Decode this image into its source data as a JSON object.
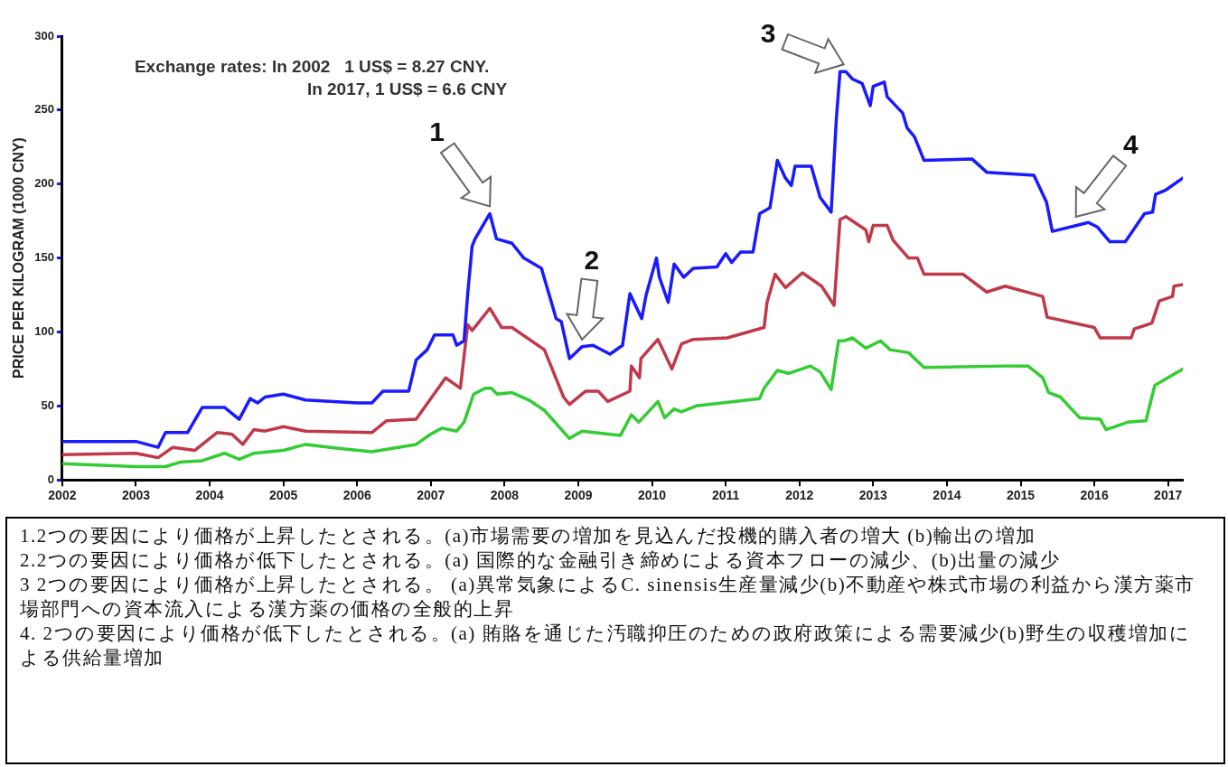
{
  "chart_data": {
    "type": "line",
    "ylabel": "PRICE PER KILOGRAM (1000 CNY)",
    "xlim": [
      2002,
      2017.2
    ],
    "xticks": [
      2002,
      2003,
      2004,
      2005,
      2006,
      2007,
      2008,
      2009,
      2010,
      2011,
      2012,
      2013,
      2014,
      2015,
      2016,
      2017
    ],
    "ylim": [
      0,
      300
    ],
    "yticks": [
      0,
      50,
      100,
      150,
      200,
      250,
      300
    ],
    "grid": false,
    "legend": false,
    "marker": "none",
    "line_style": "solid",
    "series": [
      {
        "color": "#1a1aff",
        "x": [
          2002,
          2003,
          2003.3,
          2003.4,
          2003.7,
          2003.9,
          2004.2,
          2004.4,
          2004.55,
          2004.65,
          2004.75,
          2005,
          2005.3,
          2006,
          2006.2,
          2006.35,
          2006.7,
          2006.8,
          2006.95,
          2007.05,
          2007.3,
          2007.35,
          2007.45,
          2007.5,
          2007.56,
          2007.6,
          2007.8,
          2007.89,
          2008.1,
          2008.26,
          2008.5,
          2008.7,
          2008.77,
          2008.88,
          2009.05,
          2009.2,
          2009.43,
          2009.6,
          2009.7,
          2009.86,
          2009.92,
          2010.06,
          2010.1,
          2010.22,
          2010.3,
          2010.43,
          2010.56,
          2010.88,
          2011,
          2011.08,
          2011.2,
          2011.37,
          2011.46,
          2011.6,
          2011.7,
          2011.81,
          2011.89,
          2011.94,
          2012.16,
          2012.28,
          2012.43,
          2012.5,
          2012.55,
          2012.63,
          2012.72,
          2012.85,
          2012.96,
          2013,
          2013.15,
          2013.19,
          2013.4,
          2013.46,
          2013.56,
          2013.69,
          2014.34,
          2014.54,
          2015.18,
          2015.35,
          2015.43,
          2015.92,
          2016.04,
          2016.21,
          2016.42,
          2016.68,
          2016.79,
          2016.83,
          2016.97,
          2017.2
        ],
        "values": [
          26,
          26,
          22,
          32,
          32,
          49,
          49,
          41,
          55,
          52,
          56,
          58,
          54,
          52,
          52,
          60,
          60,
          81,
          88,
          98,
          98,
          91,
          94,
          126,
          158,
          163,
          180,
          163,
          160,
          150,
          143,
          109,
          107,
          82,
          90,
          91,
          85,
          91,
          126,
          109,
          125,
          150,
          137,
          120,
          146,
          137,
          143,
          144,
          153,
          147,
          154,
          154,
          180,
          184,
          216,
          204,
          199,
          212,
          212,
          191,
          181,
          244,
          276,
          276,
          271,
          268,
          253,
          266,
          269,
          259,
          248,
          238,
          232,
          216,
          217,
          208,
          206,
          188,
          168,
          174,
          171,
          161,
          161,
          180,
          181,
          193,
          196,
          204
        ]
      },
      {
        "color": "#c0394b",
        "x": [
          2002,
          2003,
          2003.3,
          2003.5,
          2003.8,
          2004.1,
          2004.3,
          2004.45,
          2004.6,
          2004.75,
          2005,
          2005.3,
          2006.2,
          2006.4,
          2006.8,
          2007.2,
          2007.4,
          2007.5,
          2007.56,
          2007.8,
          2007.96,
          2008.1,
          2008.54,
          2008.8,
          2008.88,
          2009.1,
          2009.27,
          2009.4,
          2009.7,
          2009.72,
          2009.83,
          2009.85,
          2010.08,
          2010.27,
          2010.4,
          2010.56,
          2011.02,
          2011.52,
          2011.56,
          2011.67,
          2011.81,
          2012.04,
          2012.3,
          2012.47,
          2012.55,
          2012.63,
          2012.9,
          2012.94,
          2013,
          2013.19,
          2013.27,
          2013.48,
          2013.6,
          2013.69,
          2014.22,
          2014.54,
          2014.79,
          2015.3,
          2015.36,
          2016,
          2016.08,
          2016.5,
          2016.54,
          2016.78,
          2016.88,
          2017.06,
          2017.08,
          2017.2
        ],
        "values": [
          17,
          18,
          15,
          22,
          20,
          32,
          31,
          24,
          34,
          33,
          36,
          33,
          32,
          40,
          41,
          69,
          62,
          105,
          101,
          116,
          103,
          103,
          88,
          56,
          51,
          60,
          60,
          53,
          60,
          77,
          69,
          82,
          95,
          75,
          92,
          95,
          96,
          103,
          120,
          139,
          130,
          140,
          131,
          118,
          176,
          178,
          169,
          161,
          172,
          172,
          162,
          150,
          150,
          139,
          139,
          127,
          131,
          124,
          110,
          103,
          96,
          96,
          102,
          106,
          121,
          124,
          131,
          132
        ]
      },
      {
        "color": "#33cc33",
        "x": [
          2002,
          2003,
          2003.4,
          2003.6,
          2003.9,
          2004.2,
          2004.4,
          2004.6,
          2005,
          2005.3,
          2005.8,
          2006.2,
          2006.8,
          2007,
          2007.15,
          2007.35,
          2007.45,
          2007.58,
          2007.74,
          2007.82,
          2007.9,
          2008.1,
          2008.33,
          2008.54,
          2008.88,
          2009.05,
          2009.57,
          2009.72,
          2009.82,
          2010.08,
          2010.17,
          2010.3,
          2010.4,
          2010.6,
          2011.46,
          2011.52,
          2011.7,
          2011.85,
          2012.15,
          2012.28,
          2012.43,
          2012.53,
          2012.6,
          2012.72,
          2012.9,
          2013.1,
          2013.23,
          2013.48,
          2013.69,
          2014.79,
          2015.1,
          2015.3,
          2015.38,
          2015.54,
          2015.8,
          2016.08,
          2016.16,
          2016.45,
          2016.7,
          2016.82,
          2017.2
        ],
        "values": [
          11,
          9,
          9,
          12,
          13,
          18,
          14,
          18,
          20,
          24,
          21,
          19,
          24,
          31,
          35,
          33,
          39,
          58,
          62,
          62,
          58,
          59,
          54,
          47,
          28,
          33,
          30,
          44,
          39,
          53,
          42,
          48,
          46,
          50,
          55,
          62,
          74,
          72,
          77,
          73,
          61,
          94,
          94,
          96,
          89,
          94,
          88,
          86,
          76,
          77,
          77,
          69,
          59,
          56,
          42,
          41,
          34,
          39,
          40,
          64,
          75
        ]
      }
    ],
    "annotations": [
      "Exchange rates: In 2002   1 US$ = 8.27 CNY.",
      "In 2017, 1 US$ = 6.6 CNY",
      {
        "text": "1",
        "x": 2007.8,
        "y": 180
      },
      {
        "text": "2",
        "x": 2009.05,
        "y": 90
      },
      {
        "text": "3",
        "x": 2012.6,
        "y": 276
      },
      {
        "text": "4",
        "x": 2015.75,
        "y": 173
      },
      "1.2つの要因により価格が上昇したとされる。(a)市場需要の増加を見込んだ投機的購入者の増大 (b)輸出の増加",
      "2.2つの要因により価格が低下したとされる。(a) 国際的な金融引き締めによる資本フローの減少、(b)出量の減少",
      "3 2つの要因により価格が上昇したとされる。 (a)異常気象によるC. sinensis生産量減少(b)不動産や株式市場の利益から漢方薬市場部門への資本流入による漢方薬の価格の全般的上昇",
      "4. 2つの要因により価格が低下したとされる。(a) 賄賂を通じた汚職抑圧のための政府政策による需要減少(b)野生の収穫増加による供給量増加"
    ]
  }
}
